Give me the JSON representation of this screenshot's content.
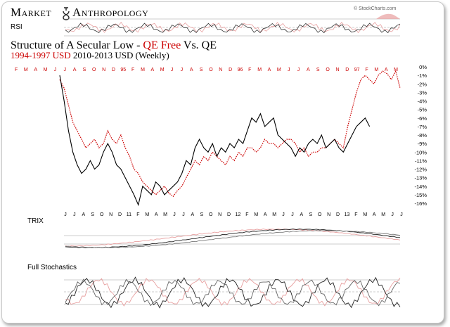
{
  "brand": {
    "left": "Market",
    "right": "Anthropology",
    "logo_icon": "ampersand-logo-icon"
  },
  "credit": "© StockCharts.com",
  "chart_data": {
    "type": "line",
    "title": "Structure of A Secular Low - QE Free Vs. QE",
    "title_main": "Structure of A Secular Low - ",
    "title_highlight": "QE Free",
    "title_tail": " Vs. QE",
    "subtitle_red": "1994-1997 USD",
    "subtitle_black": " 2010-2013 USD (Weekly)",
    "colors": {
      "series_1994": "#cc0000",
      "series_2010": "#000000",
      "highlight": "#cc0000",
      "panel_red": "#e8a0a0"
    },
    "top_axis_labels": [
      "F",
      "M",
      "A",
      "M",
      "J",
      "J",
      "A",
      "S",
      "O",
      "N",
      "D",
      "95",
      "F",
      "M",
      "A",
      "M",
      "J",
      "J",
      "A",
      "S",
      "O",
      "N",
      "D",
      "96",
      "F",
      "M",
      "A",
      "M",
      "J",
      "J",
      "A",
      "S",
      "O",
      "N",
      "D",
      "97",
      "F",
      "M",
      "A",
      "M"
    ],
    "bottom_axis_labels": [
      "J",
      "J",
      "A",
      "S",
      "O",
      "N",
      "D",
      "11",
      "F",
      "M",
      "A",
      "M",
      "J",
      "J",
      "A",
      "S",
      "O",
      "N",
      "D",
      "12",
      "F",
      "M",
      "A",
      "M",
      "J",
      "J",
      "A",
      "S",
      "O",
      "N",
      "D",
      "13",
      "F",
      "M",
      "A",
      "M",
      "J",
      "J"
    ],
    "y_ticks": [
      "0%",
      "-1%",
      "-2%",
      "-3%",
      "-4%",
      "-5%",
      "-6%",
      "-7%",
      "-8%",
      "-9%",
      "-10%",
      "-11%",
      "-12%",
      "-13%",
      "-14%",
      "-15%",
      "-16%"
    ],
    "ylim": [
      -16,
      0
    ],
    "series": [
      {
        "name": "1994-1997 USD",
        "x": [
          0,
          3,
          6,
          9,
          12,
          15,
          18,
          21,
          24,
          27,
          30,
          33,
          36,
          39,
          42,
          45,
          48,
          51,
          54,
          57,
          60,
          63,
          66,
          69,
          72,
          75,
          78,
          81,
          84,
          87,
          90,
          93,
          96,
          99,
          102,
          105,
          108,
          111,
          114,
          117,
          120,
          123,
          126,
          129,
          132,
          135,
          138,
          141,
          144,
          147,
          150,
          153,
          156,
          159,
          162,
          165,
          168,
          171,
          174,
          177,
          180,
          183,
          186,
          189,
          192,
          195,
          198,
          201,
          204,
          207,
          210,
          213,
          216,
          219,
          222,
          225,
          228,
          231,
          234
        ],
        "y": [
          -1.5,
          -2.5,
          -4.5,
          -6.5,
          -7.5,
          -8.5,
          -9.5,
          -9,
          -8.5,
          -9.5,
          -9,
          -7.5,
          -8.5,
          -9,
          -8,
          -9.5,
          -10.5,
          -12,
          -12.5,
          -13.5,
          -14,
          -14.5,
          -15,
          -14.5,
          -14,
          -14.8,
          -15.2,
          -14.5,
          -14,
          -13,
          -12,
          -11,
          -11.5,
          -10.5,
          -11,
          -10,
          -10.5,
          -11,
          -11.5,
          -10.5,
          -11,
          -10,
          -10.5,
          -9.5,
          -9.5,
          -10,
          -9.5,
          -8.5,
          -9,
          -9,
          -9.5,
          -9,
          -8.5,
          -8.5,
          -9,
          -10,
          -9.5,
          -10.5,
          -10,
          -10,
          -9.5,
          -9.5,
          -9,
          -8.5,
          -9,
          -9.5,
          -7,
          -5,
          -3,
          -1.5,
          -1,
          -1.5,
          -2,
          -1,
          -0.5,
          -0.8,
          -1.5,
          -0.5,
          -2.5
        ]
      },
      {
        "name": "2010-2013 USD",
        "x": [
          0,
          3,
          6,
          9,
          12,
          15,
          18,
          21,
          24,
          27,
          30,
          33,
          36,
          39,
          42,
          45,
          48,
          51,
          54,
          57,
          60,
          63,
          66,
          69,
          72,
          75,
          78,
          81,
          84,
          87,
          90,
          93,
          96,
          99,
          102,
          105,
          108,
          111,
          114,
          117,
          120,
          123,
          126,
          129,
          132,
          135,
          138,
          141,
          144,
          147,
          150,
          153,
          156,
          159,
          162,
          165,
          168,
          171,
          174,
          177,
          180,
          183,
          186,
          189,
          192,
          195,
          198,
          201,
          204,
          207,
          210,
          213
        ],
        "y": [
          -1,
          -4,
          -7.5,
          -10,
          -11.5,
          -12.5,
          -12,
          -11,
          -12,
          -11.5,
          -10,
          -9,
          -10,
          -11.5,
          -12,
          -13,
          -14,
          -15,
          -16.2,
          -14,
          -14.5,
          -15,
          -13.5,
          -14,
          -15,
          -14.5,
          -14,
          -13.5,
          -12.5,
          -11,
          -11.5,
          -9.5,
          -8.5,
          -9.5,
          -10,
          -9,
          -10.5,
          -9.5,
          -10,
          -9,
          -9.5,
          -8.5,
          -9,
          -7.5,
          -6,
          -6.5,
          -5.5,
          -7,
          -6.5,
          -6,
          -8,
          -8.5,
          -9,
          -9.5,
          -10.5,
          -9.5,
          -10,
          -9,
          -8.5,
          -9,
          -8,
          -9.5,
          -9,
          -8.5,
          -9.5,
          -10,
          -9,
          -8,
          -7,
          -6.5,
          -6,
          -7
        ]
      }
    ],
    "panels": {
      "rsi_label": "RSI",
      "trix_label": "TRIX",
      "stoch_label": "Full Stochastics"
    }
  }
}
